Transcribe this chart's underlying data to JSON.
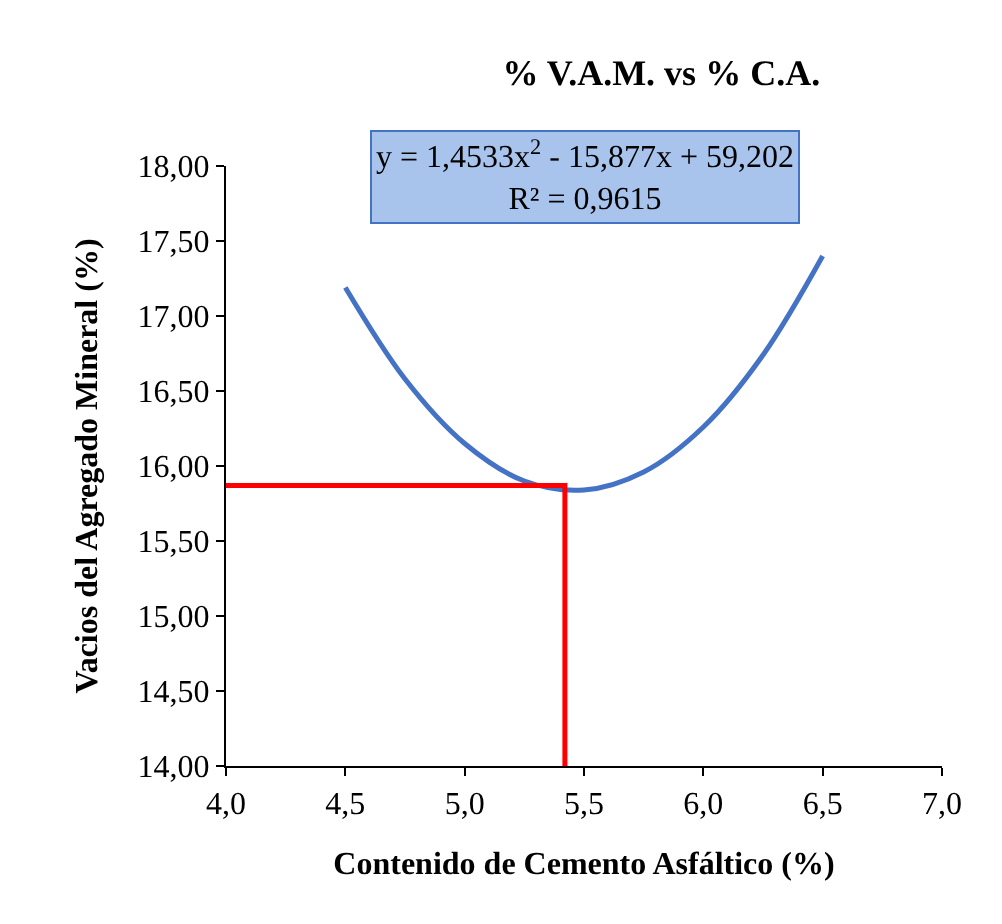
{
  "chart_data": {
    "type": "line",
    "title": "% V.A.M. vs % C.A.",
    "xlabel": "Contenido de Cemento Asfáltico (%)",
    "ylabel": "Vacios del Agregado Mineral (%)",
    "series": [
      {
        "color": "#4472c4",
        "x": [
          4.5,
          4.75,
          5.0,
          5.25,
          5.5,
          5.75,
          6.0,
          6.25,
          6.5
        ],
        "values": [
          17.19,
          16.58,
          16.15,
          15.9,
          15.84,
          15.96,
          16.26,
          16.74,
          17.4
        ]
      },
      {
        "color": "#ff0000",
        "x": [
          4.0,
          5.42,
          5.42
        ],
        "values": [
          15.87,
          15.87,
          14.0
        ]
      }
    ],
    "annotations": [
      "y = 1,4533x$^{2}$ - 15,877x + 59,202\nR² = 0,9615"
    ],
    "xlim": [
      4.0,
      7.0
    ],
    "xticks": [
      {
        "value": 4.0,
        "label": "4,0"
      },
      {
        "value": 4.5,
        "label": "4,5"
      },
      {
        "value": 5.0,
        "label": "5,0"
      },
      {
        "value": 5.5,
        "label": "5,5"
      },
      {
        "value": 6.0,
        "label": "6,0"
      },
      {
        "value": 6.5,
        "label": "6,5"
      },
      {
        "value": 7.0,
        "label": "7,0"
      }
    ],
    "ylim": [
      14.0,
      18.0
    ],
    "yticks": [
      {
        "value": 14.0,
        "label": "14,00"
      },
      {
        "value": 14.5,
        "label": "14,50"
      },
      {
        "value": 15.0,
        "label": "15,00"
      },
      {
        "value": 15.5,
        "label": "15,50"
      },
      {
        "value": 16.0,
        "label": "16,00"
      },
      {
        "value": 16.5,
        "label": "16,50"
      },
      {
        "value": 17.0,
        "label": "17,00"
      },
      {
        "value": 17.5,
        "label": "17,50"
      },
      {
        "value": 18.0,
        "label": "18,00"
      }
    ],
    "marker": "none",
    "line_style": "solid"
  }
}
